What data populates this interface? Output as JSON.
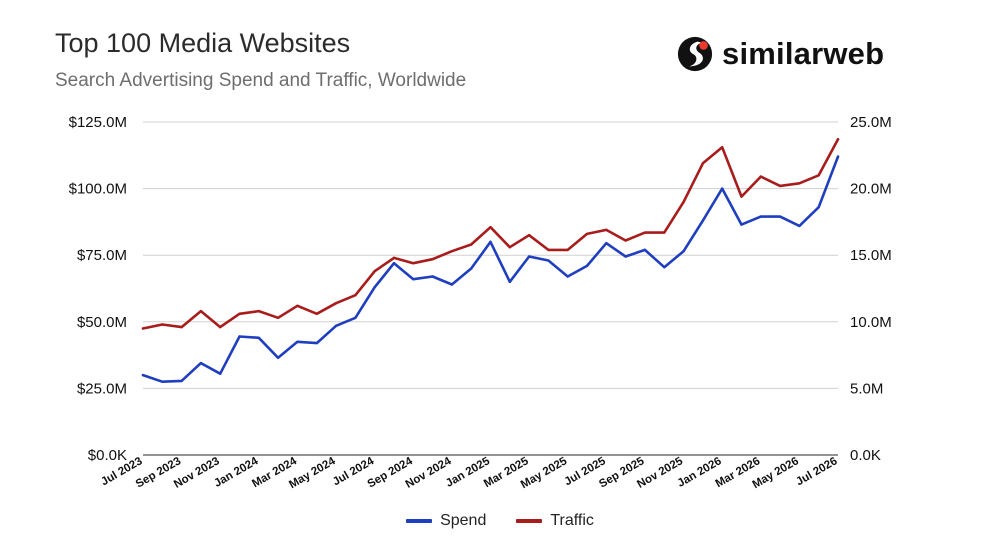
{
  "title": "Top 100 Media Websites",
  "subtitle": "Search Advertising Spend and Traffic, Worldwide",
  "brand": {
    "name": "similarweb",
    "icon": "similarweb-logo-icon",
    "logo_color": "#111111",
    "accent": "#ee3a2c"
  },
  "chart_data": {
    "type": "line",
    "title": "",
    "xlabel": "",
    "ylabel": "",
    "x": [
      "Jul 2023",
      "Aug 2023",
      "Sep 2023",
      "Oct 2023",
      "Nov 2023",
      "Dec 2023",
      "Jan 2024",
      "Feb 2024",
      "Mar 2024",
      "Apr 2024",
      "May 2024",
      "Jun 2024",
      "Jul 2024",
      "Aug 2024",
      "Sep 2024",
      "Oct 2024",
      "Nov 2024",
      "Dec 2024",
      "Jan 2025",
      "Feb 2025",
      "Mar 2025",
      "Apr 2025",
      "May 2025",
      "Jun 2025",
      "Jul 2025",
      "Aug 2025",
      "Sep 2025",
      "Oct 2025",
      "Nov 2025",
      "Dec 2025",
      "Jan 2026",
      "Feb 2026",
      "Mar 2026",
      "Apr 2026",
      "May 2026",
      "Jun 2026",
      "Jul 2026"
    ],
    "x_tick_labels": [
      "Jul 2023",
      "Sep 2023",
      "Nov 2023",
      "Jan 2024",
      "Mar 2024",
      "May 2024",
      "Jul 2024",
      "Sep 2024",
      "Nov 2024",
      "Jan 2025",
      "Mar 2025",
      "May 2025",
      "Jul 2025",
      "Sep 2025",
      "Nov 2025",
      "Jan 2026",
      "Mar 2026",
      "May 2026",
      "Jul 2026"
    ],
    "y_left": {
      "ylim": [
        0,
        125
      ],
      "unit": "$M",
      "ticks": [
        "$0.0K",
        "$25.0M",
        "$50.0M",
        "$75.0M",
        "$100.0M",
        "$125.0M"
      ]
    },
    "y_right": {
      "ylim": [
        0,
        25
      ],
      "unit": "M",
      "ticks": [
        "0.0K",
        "5.0M",
        "10.0M",
        "15.0M",
        "20.0M",
        "25.0M"
      ]
    },
    "grid": "horizontal",
    "legend_position": "bottom",
    "series": [
      {
        "name": "Spend",
        "axis": "left",
        "color": "#1f3fbf",
        "values": [
          30,
          27.5,
          27.8,
          34.5,
          30.5,
          44.5,
          44,
          36.5,
          42.5,
          42,
          48.5,
          51.5,
          63,
          72,
          66,
          67,
          64,
          70,
          80,
          65,
          74.5,
          73,
          67,
          71,
          79.5,
          74.5,
          77,
          70.5,
          76.5,
          88,
          100,
          86.5,
          89.5,
          89.5,
          86,
          93,
          112
        ]
      },
      {
        "name": "Traffic",
        "axis": "right",
        "color": "#a81c1c",
        "values": [
          9.5,
          9.8,
          9.6,
          10.8,
          9.6,
          10.6,
          10.8,
          10.3,
          11.2,
          10.6,
          11.4,
          12,
          13.8,
          14.8,
          14.4,
          14.7,
          15.3,
          15.8,
          17.1,
          15.6,
          16.5,
          15.4,
          15.4,
          16.6,
          16.9,
          16.1,
          16.7,
          16.7,
          19,
          21.9,
          23.1,
          19.4,
          20.9,
          20.2,
          20.4,
          21,
          23.7
        ]
      }
    ]
  }
}
